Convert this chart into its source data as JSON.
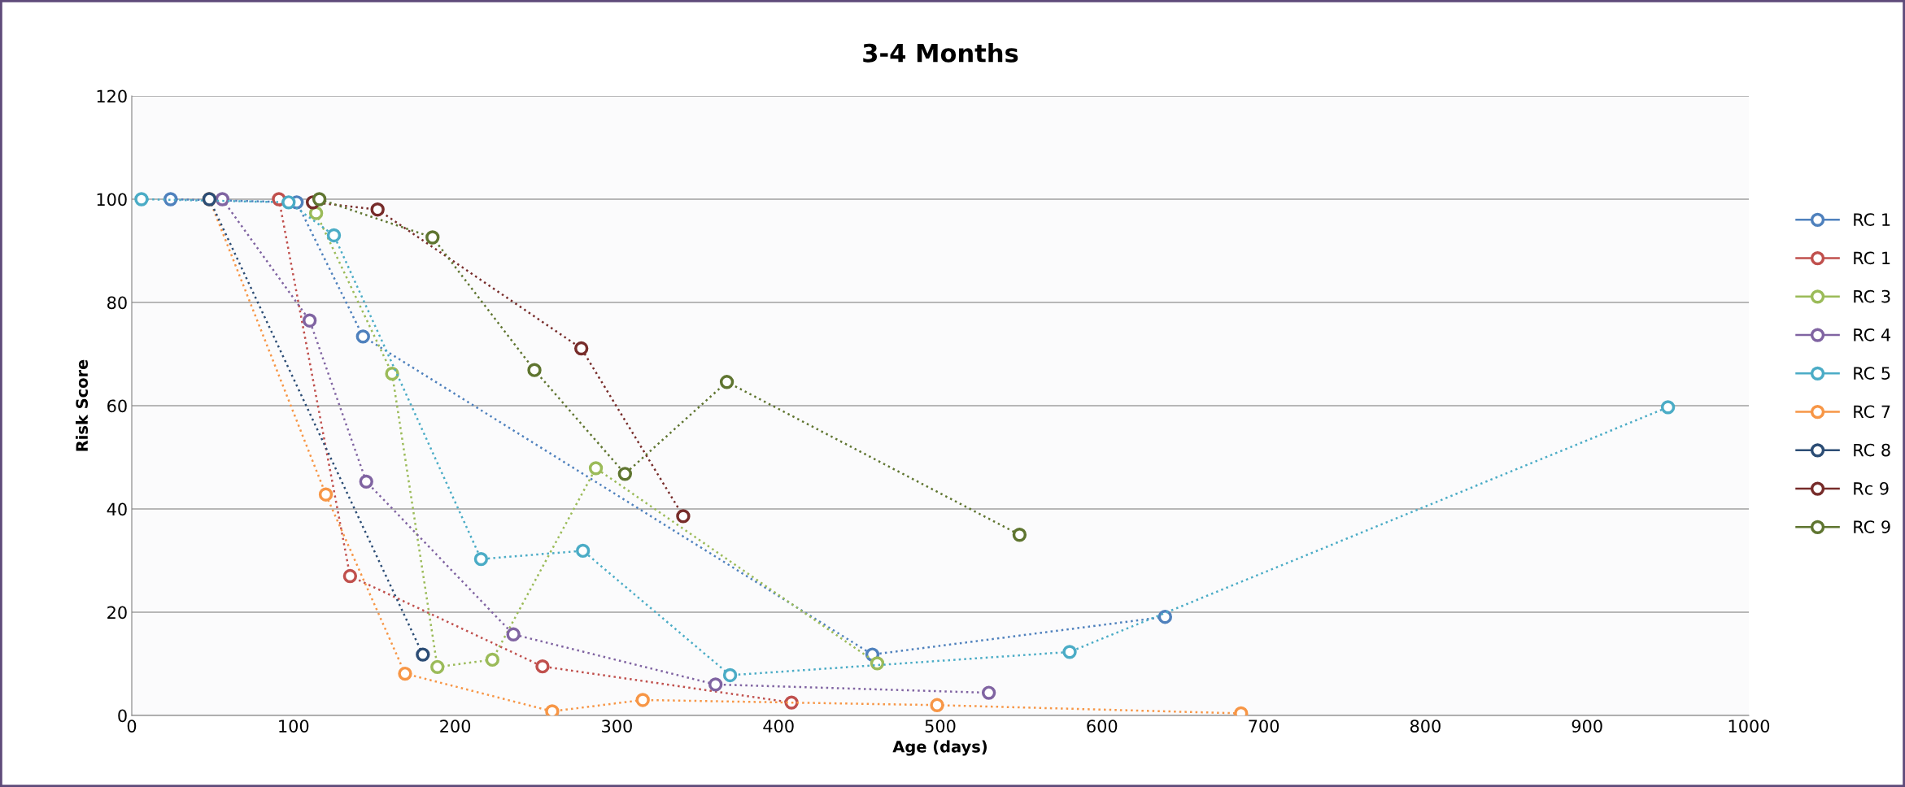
{
  "chart_data": {
    "type": "line",
    "title": "3-4 Months",
    "xlabel": "Age (days)",
    "ylabel": "Risk Score",
    "xlim": [
      0,
      1000
    ],
    "xticks": [
      0,
      100,
      200,
      300,
      400,
      500,
      600,
      700,
      800,
      900,
      1000
    ],
    "ylim": [
      0,
      120
    ],
    "yticks": [
      0,
      20,
      40,
      60,
      80,
      100,
      120
    ],
    "grid": "y",
    "legend": "right",
    "marker": "circle",
    "line_style": "dotted",
    "series": [
      {
        "name": "RC 1",
        "color": "#4f81bd",
        "x": [
          24,
          102,
          143,
          458,
          639
        ],
        "values": [
          100,
          99.4,
          73.4,
          11.8,
          19.1
        ]
      },
      {
        "name": "RC 1",
        "color": "#c0504d",
        "x": [
          91,
          135,
          254,
          408
        ],
        "values": [
          100,
          27,
          9.5,
          2.5
        ]
      },
      {
        "name": "RC 3",
        "color": "#9bbb59",
        "x": [
          114,
          161,
          189,
          223,
          287,
          461
        ],
        "values": [
          97.3,
          66.2,
          9.4,
          10.8,
          47.9,
          10.1
        ]
      },
      {
        "name": "RC 4",
        "color": "#8064a2",
        "x": [
          56,
          110,
          145,
          236,
          361,
          530
        ],
        "values": [
          100,
          76.5,
          45.3,
          15.7,
          6.0,
          4.4
        ]
      },
      {
        "name": "RC 5",
        "color": "#4bacc6",
        "x": [
          6,
          97,
          125,
          216,
          279,
          370,
          580,
          950
        ],
        "values": [
          100,
          99.4,
          93,
          30.3,
          31.9,
          7.8,
          12.3,
          59.7
        ]
      },
      {
        "name": "RC 7",
        "color": "#f79646",
        "x": [
          48,
          120,
          169,
          260,
          316,
          498,
          686
        ],
        "values": [
          100,
          42.8,
          8.1,
          0.8,
          3.0,
          2.0,
          0.4
        ]
      },
      {
        "name": "RC 8",
        "color": "#2c4d75",
        "x": [
          48,
          180
        ],
        "values": [
          100,
          11.8
        ]
      },
      {
        "name": "Rc 9",
        "color": "#772c2a",
        "x": [
          112,
          152,
          278,
          341
        ],
        "values": [
          99.4,
          98,
          71.1,
          38.6
        ]
      },
      {
        "name": "RC 9",
        "color": "#5f7530",
        "x": [
          116,
          186,
          249,
          305,
          368,
          549
        ],
        "values": [
          100,
          92.6,
          66.9,
          46.8,
          64.6,
          35
        ]
      }
    ]
  }
}
